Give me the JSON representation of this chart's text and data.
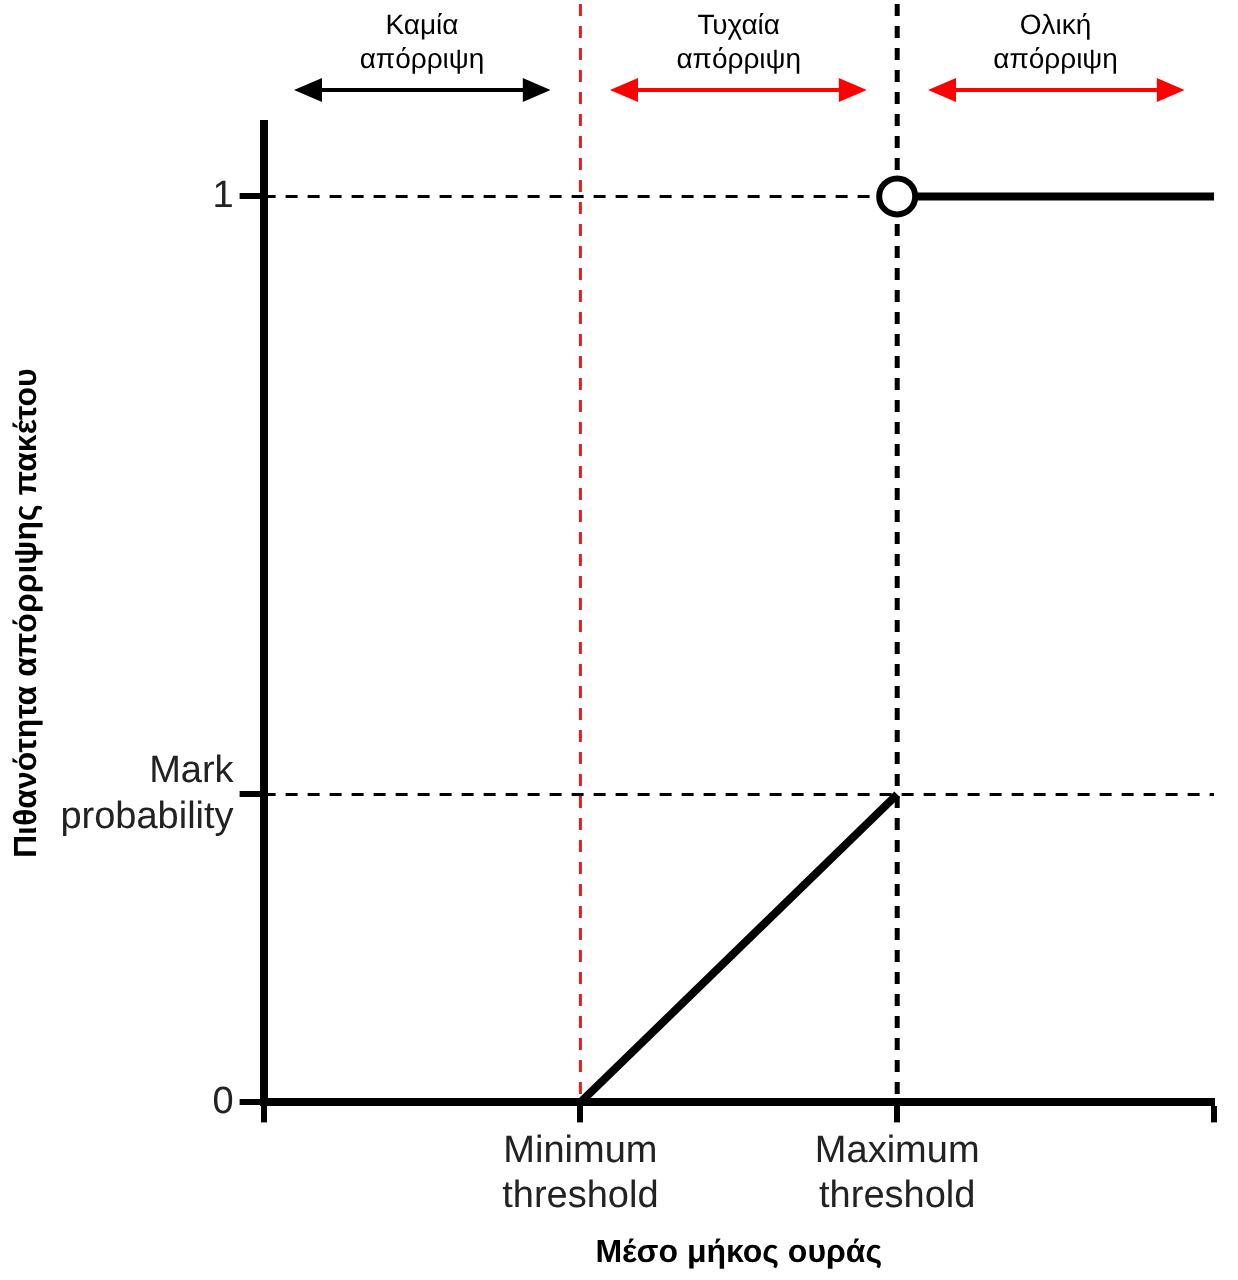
{
  "chart_data": {
    "type": "line",
    "xlabel": "Μέσο μήκος ουράς",
    "ylabel": "Πιθανότητα απόρριψης πακέτου",
    "categories": [
      null,
      "Minimum threshold",
      "Maximum threshold",
      null
    ],
    "series": [
      {
        "type": "line",
        "color": "#000000",
        "marker": "none",
        "values": [
          0,
          0,
          0.34,
          null
        ]
      },
      {
        "type": "line",
        "color": "#000000",
        "marker": "none",
        "values": [
          null,
          null,
          1,
          1
        ]
      },
      {
        "type": "scatter",
        "color": "#000000",
        "marker": "circle",
        "values": [
          null,
          null,
          1,
          null
        ]
      }
    ],
    "ylim": [
      0,
      1.08
    ],
    "yticks": [
      0,
      {
        "value": 0.34,
        "label": "Mark probability"
      },
      1
    ],
    "ref_lines": [
      {
        "axis": "x",
        "value": "Minimum threshold",
        "color": "#e02020",
        "line_style": "dashed"
      },
      {
        "axis": "x",
        "value": "Maximum threshold",
        "color": "#000000",
        "line_style": "dashed"
      },
      {
        "axis": "y",
        "value": 1,
        "color": "#000000",
        "line_style": "dashed"
      },
      {
        "axis": "y",
        "value": 0.34,
        "color": "#000000",
        "line_style": "dashed"
      }
    ],
    "annotations": [
      "Καμία απόρριψη",
      "Τυχαία απόρριψη",
      "Ολική απόρριψη"
    ],
    "grid": false,
    "legend": false
  }
}
